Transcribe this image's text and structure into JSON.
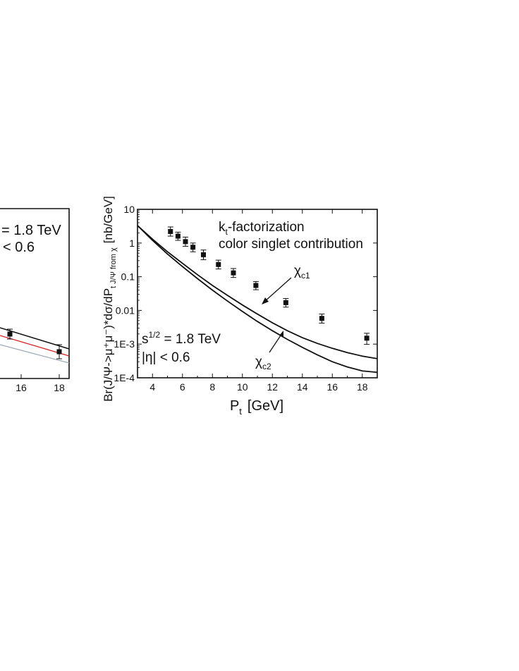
{
  "chart_data": [
    {
      "type": "line",
      "partial": true,
      "x_ticks": [
        "16",
        "18"
      ],
      "annotation_lines": [
        "= 1.8 TeV",
        "< 0.6"
      ],
      "colors": {
        "line_black": "#111111",
        "line_red": "#d62020",
        "line_gray": "#9aa7b4"
      },
      "points": [
        {
          "x": 15.4,
          "y": 0.0058
        },
        {
          "x": 18.3,
          "y": 0.0016
        }
      ]
    },
    {
      "type": "scatter",
      "xlabel_main": "P",
      "xlabel_sub": "t",
      "xlabel_unit": "[GeV]",
      "ylabel": "Br(J/Ψ->μ⁺μ⁻)*dσ/dP",
      "ylabel_sub": "t J/Ψ from χ",
      "ylabel_unit": "[nb/GeV]",
      "xlim": [
        3,
        19
      ],
      "ylim": [
        0.0001,
        10
      ],
      "yscale": "log",
      "x_ticks": [
        4,
        6,
        8,
        10,
        12,
        14,
        16,
        18
      ],
      "x_tick_labels": [
        "4",
        "6",
        "8",
        "10",
        "12",
        "14",
        "16",
        "18"
      ],
      "y_ticks": [
        10,
        1,
        0.1,
        0.01,
        0.001,
        0.0001
      ],
      "y_tick_labels": [
        "10",
        "1",
        "0.1",
        "0.01",
        "1E-3",
        "1E-4"
      ],
      "annotations": {
        "kt_main": "k",
        "kt_sub": "t",
        "kt_rest": "-factorization",
        "color_singlet": "color singlet contribution",
        "s_main": "s",
        "s_sup": "1/2",
        "s_rest": " = 1.8 TeV",
        "eta": "|η| < 0.6",
        "chi_c1_main": "χ",
        "chi_c1_sub": "c1",
        "chi_c2_main": "χ",
        "chi_c2_sub": "c2"
      },
      "points": [
        {
          "x": 5.2,
          "y": 2.2,
          "err_lo": 1.6,
          "err_hi": 3.0
        },
        {
          "x": 5.7,
          "y": 1.6,
          "err_lo": 1.2,
          "err_hi": 2.1
        },
        {
          "x": 6.2,
          "y": 1.1,
          "err_lo": 0.8,
          "err_hi": 1.5
        },
        {
          "x": 6.7,
          "y": 0.75,
          "err_lo": 0.55,
          "err_hi": 1.0
        },
        {
          "x": 7.4,
          "y": 0.45,
          "err_lo": 0.32,
          "err_hi": 0.62
        },
        {
          "x": 8.4,
          "y": 0.23,
          "err_lo": 0.17,
          "err_hi": 0.31
        },
        {
          "x": 9.4,
          "y": 0.13,
          "err_lo": 0.095,
          "err_hi": 0.175
        },
        {
          "x": 10.9,
          "y": 0.055,
          "err_lo": 0.041,
          "err_hi": 0.072
        },
        {
          "x": 12.9,
          "y": 0.017,
          "err_lo": 0.0125,
          "err_hi": 0.0225
        },
        {
          "x": 15.3,
          "y": 0.0058,
          "err_lo": 0.0042,
          "err_hi": 0.0078
        },
        {
          "x": 18.3,
          "y": 0.0015,
          "err_lo": 0.00098,
          "err_hi": 0.0021
        }
      ],
      "series": [
        {
          "x": [
            3,
            4,
            5,
            6,
            7,
            8,
            9,
            10,
            11,
            12,
            13,
            14,
            15,
            16,
            17,
            18,
            19
          ],
          "values": [
            3.3,
            1.3,
            0.55,
            0.25,
            0.115,
            0.055,
            0.028,
            0.0145,
            0.0078,
            0.0043,
            0.0025,
            0.00155,
            0.00105,
            0.00075,
            0.00056,
            0.00044,
            0.00037
          ]
        },
        {
          "x": [
            3,
            4,
            5,
            6,
            7,
            8,
            9,
            10,
            11,
            12,
            13,
            14,
            15,
            16,
            17,
            18,
            19
          ],
          "values": [
            3.3,
            1.2,
            0.47,
            0.2,
            0.088,
            0.04,
            0.019,
            0.0093,
            0.0047,
            0.0025,
            0.00138,
            0.0008,
            0.00048,
            0.0003,
            0.00021,
            0.00016,
            0.000145
          ]
        }
      ]
    }
  ]
}
